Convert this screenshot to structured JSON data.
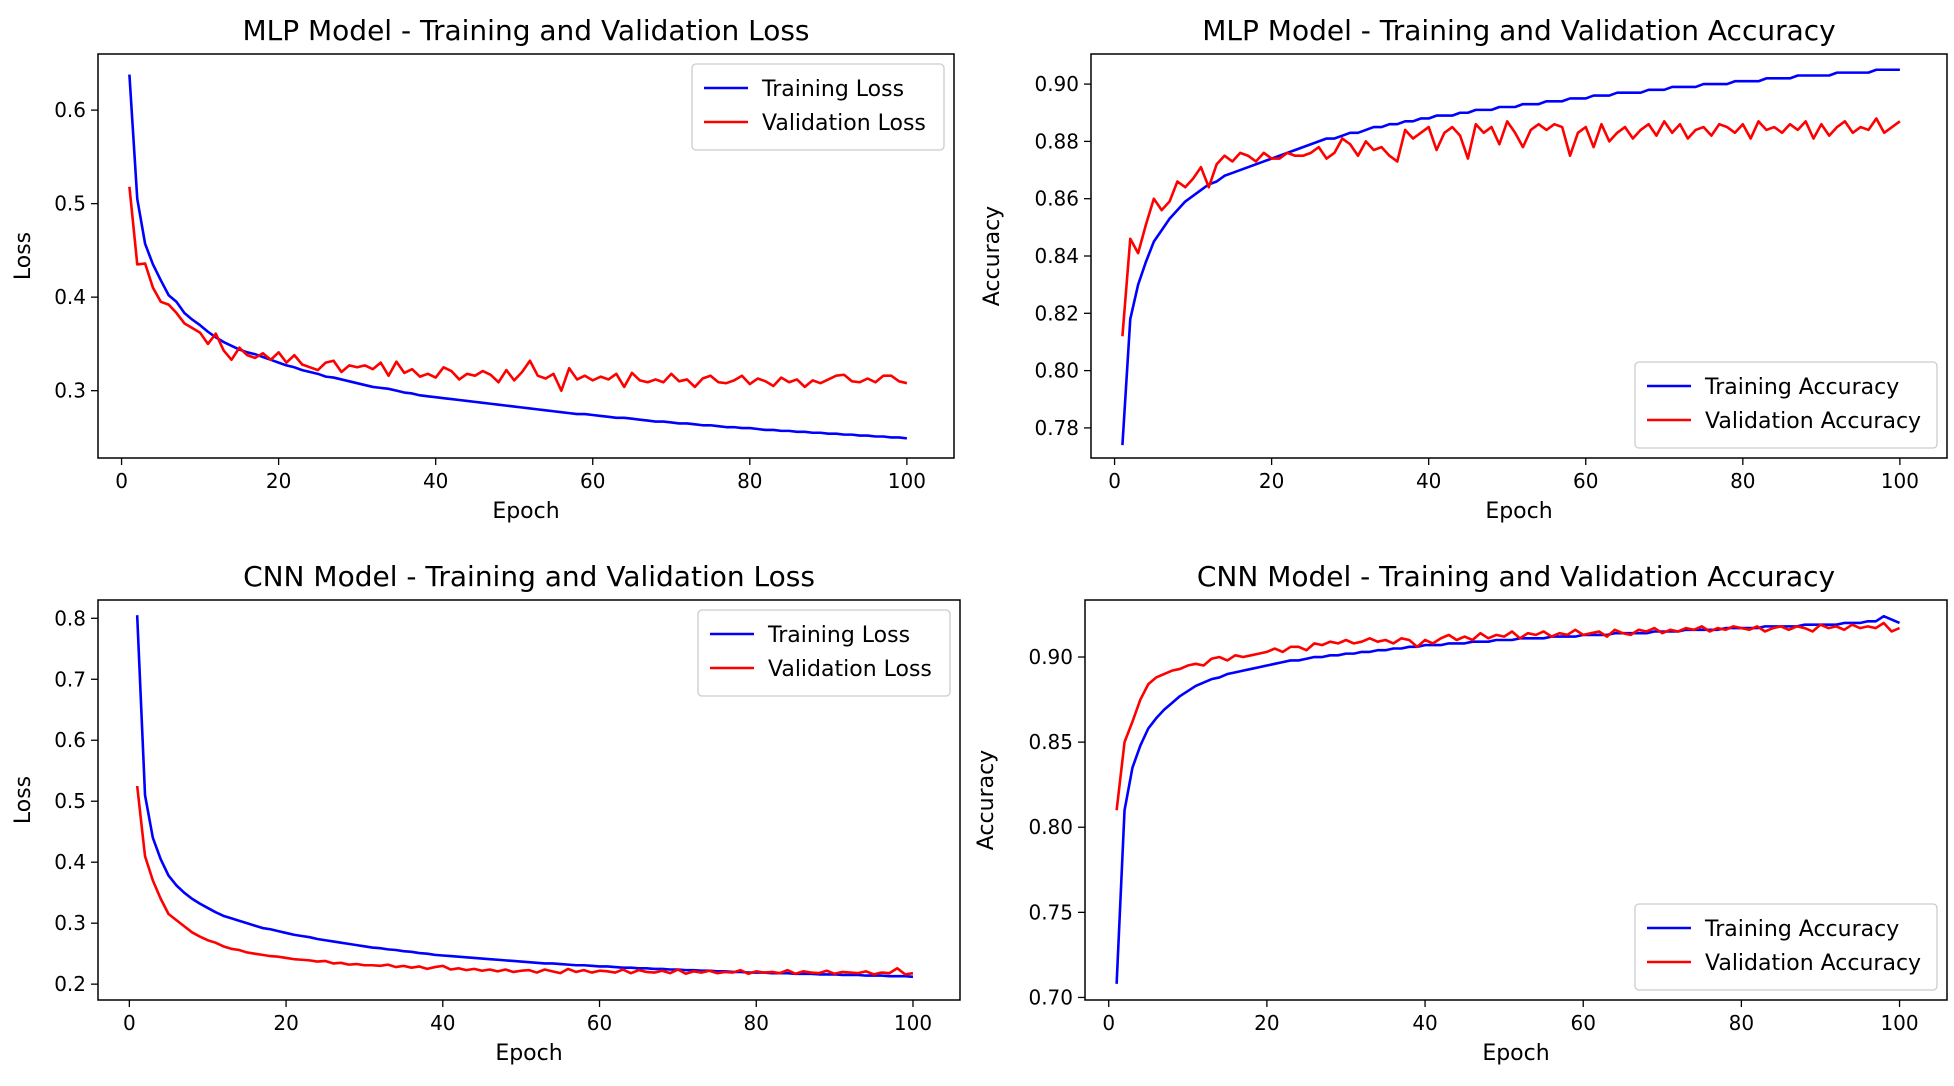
{
  "chart_data": [
    {
      "type": "line",
      "title": "MLP Model - Training and Validation Loss",
      "xlabel": "Epoch",
      "ylabel": "Loss",
      "xlim": [
        -3,
        106
      ],
      "ylim": [
        0.228,
        0.66
      ],
      "xticks": [
        0,
        20,
        40,
        60,
        80,
        100
      ],
      "xtick_labels": [
        "0",
        "20",
        "40",
        "60",
        "80",
        "100"
      ],
      "yticks": [
        0.3,
        0.4,
        0.5,
        0.6
      ],
      "ytick_labels": [
        "0.3",
        "0.4",
        "0.5",
        "0.6"
      ],
      "legend_position": "upper right",
      "grid": false,
      "x_start": 1,
      "series": [
        {
          "name": "Training Loss",
          "color": "#0000ff",
          "values": [
            0.638,
            0.505,
            0.457,
            0.435,
            0.418,
            0.402,
            0.395,
            0.383,
            0.376,
            0.37,
            0.363,
            0.357,
            0.352,
            0.348,
            0.344,
            0.341,
            0.339,
            0.336,
            0.333,
            0.33,
            0.327,
            0.325,
            0.322,
            0.32,
            0.318,
            0.315,
            0.314,
            0.312,
            0.31,
            0.308,
            0.306,
            0.304,
            0.303,
            0.302,
            0.3,
            0.298,
            0.297,
            0.295,
            0.294,
            0.293,
            0.292,
            0.291,
            0.29,
            0.289,
            0.288,
            0.287,
            0.286,
            0.285,
            0.284,
            0.283,
            0.282,
            0.281,
            0.28,
            0.279,
            0.278,
            0.277,
            0.276,
            0.275,
            0.275,
            0.274,
            0.273,
            0.272,
            0.271,
            0.271,
            0.27,
            0.269,
            0.268,
            0.267,
            0.267,
            0.266,
            0.265,
            0.265,
            0.264,
            0.263,
            0.263,
            0.262,
            0.261,
            0.261,
            0.26,
            0.26,
            0.259,
            0.258,
            0.258,
            0.257,
            0.257,
            0.256,
            0.256,
            0.255,
            0.255,
            0.254,
            0.254,
            0.253,
            0.253,
            0.252,
            0.252,
            0.251,
            0.251,
            0.25,
            0.25,
            0.249
          ]
        },
        {
          "name": "Validation Loss",
          "color": "#ff0000",
          "values": [
            0.518,
            0.435,
            0.436,
            0.41,
            0.395,
            0.392,
            0.383,
            0.372,
            0.367,
            0.362,
            0.35,
            0.361,
            0.343,
            0.333,
            0.346,
            0.338,
            0.335,
            0.34,
            0.333,
            0.341,
            0.33,
            0.338,
            0.328,
            0.325,
            0.322,
            0.33,
            0.332,
            0.32,
            0.327,
            0.325,
            0.327,
            0.323,
            0.33,
            0.316,
            0.331,
            0.319,
            0.323,
            0.315,
            0.318,
            0.314,
            0.325,
            0.321,
            0.312,
            0.318,
            0.316,
            0.321,
            0.317,
            0.309,
            0.322,
            0.311,
            0.32,
            0.332,
            0.316,
            0.313,
            0.318,
            0.3,
            0.324,
            0.312,
            0.316,
            0.311,
            0.315,
            0.312,
            0.318,
            0.304,
            0.319,
            0.311,
            0.309,
            0.312,
            0.309,
            0.318,
            0.31,
            0.312,
            0.304,
            0.313,
            0.316,
            0.309,
            0.308,
            0.311,
            0.316,
            0.307,
            0.313,
            0.31,
            0.305,
            0.314,
            0.309,
            0.312,
            0.304,
            0.311,
            0.308,
            0.312,
            0.316,
            0.317,
            0.31,
            0.309,
            0.313,
            0.309,
            0.316,
            0.316,
            0.31,
            0.308
          ]
        }
      ]
    },
    {
      "type": "line",
      "title": "MLP Model - Training and Validation Accuracy",
      "xlabel": "Epoch",
      "ylabel": "Accuracy",
      "xlim": [
        -3,
        106
      ],
      "ylim": [
        0.7695,
        0.9105
      ],
      "xticks": [
        0,
        20,
        40,
        60,
        80,
        100
      ],
      "xtick_labels": [
        "0",
        "20",
        "40",
        "60",
        "80",
        "100"
      ],
      "yticks": [
        0.78,
        0.8,
        0.82,
        0.84,
        0.86,
        0.88,
        0.9
      ],
      "ytick_labels": [
        "0.78",
        "0.80",
        "0.82",
        "0.84",
        "0.86",
        "0.88",
        "0.90"
      ],
      "legend_position": "lower right",
      "grid": false,
      "x_start": 1,
      "series": [
        {
          "name": "Training Accuracy",
          "color": "#0000ff",
          "values": [
            0.774,
            0.818,
            0.83,
            0.838,
            0.845,
            0.849,
            0.853,
            0.856,
            0.859,
            0.861,
            0.863,
            0.865,
            0.866,
            0.868,
            0.869,
            0.87,
            0.871,
            0.872,
            0.873,
            0.874,
            0.875,
            0.876,
            0.877,
            0.878,
            0.879,
            0.88,
            0.881,
            0.881,
            0.882,
            0.883,
            0.883,
            0.884,
            0.885,
            0.885,
            0.886,
            0.886,
            0.887,
            0.887,
            0.888,
            0.888,
            0.889,
            0.889,
            0.889,
            0.89,
            0.89,
            0.891,
            0.891,
            0.891,
            0.892,
            0.892,
            0.892,
            0.893,
            0.893,
            0.893,
            0.894,
            0.894,
            0.894,
            0.895,
            0.895,
            0.895,
            0.896,
            0.896,
            0.896,
            0.897,
            0.897,
            0.897,
            0.897,
            0.898,
            0.898,
            0.898,
            0.899,
            0.899,
            0.899,
            0.899,
            0.9,
            0.9,
            0.9,
            0.9,
            0.901,
            0.901,
            0.901,
            0.901,
            0.902,
            0.902,
            0.902,
            0.902,
            0.903,
            0.903,
            0.903,
            0.903,
            0.903,
            0.904,
            0.904,
            0.904,
            0.904,
            0.904,
            0.905,
            0.905,
            0.905,
            0.905
          ]
        },
        {
          "name": "Validation Accuracy",
          "color": "#ff0000",
          "values": [
            0.812,
            0.846,
            0.841,
            0.851,
            0.86,
            0.856,
            0.859,
            0.866,
            0.864,
            0.867,
            0.871,
            0.864,
            0.872,
            0.875,
            0.873,
            0.876,
            0.875,
            0.873,
            0.876,
            0.874,
            0.874,
            0.876,
            0.875,
            0.875,
            0.876,
            0.878,
            0.874,
            0.876,
            0.881,
            0.879,
            0.875,
            0.88,
            0.877,
            0.878,
            0.875,
            0.873,
            0.884,
            0.881,
            0.883,
            0.885,
            0.877,
            0.883,
            0.885,
            0.882,
            0.874,
            0.886,
            0.883,
            0.885,
            0.879,
            0.887,
            0.883,
            0.878,
            0.884,
            0.886,
            0.884,
            0.886,
            0.885,
            0.875,
            0.883,
            0.885,
            0.878,
            0.886,
            0.88,
            0.883,
            0.885,
            0.881,
            0.884,
            0.886,
            0.882,
            0.887,
            0.883,
            0.886,
            0.881,
            0.884,
            0.885,
            0.882,
            0.886,
            0.885,
            0.883,
            0.886,
            0.881,
            0.887,
            0.884,
            0.885,
            0.883,
            0.886,
            0.884,
            0.887,
            0.881,
            0.886,
            0.882,
            0.885,
            0.887,
            0.883,
            0.885,
            0.884,
            0.888,
            0.883,
            0.885,
            0.887
          ]
        }
      ]
    },
    {
      "type": "line",
      "title": "CNN Model - Training and Validation Loss",
      "xlabel": "Epoch",
      "ylabel": "Loss",
      "xlim": [
        -4,
        106
      ],
      "ylim": [
        0.174,
        0.83
      ],
      "xticks": [
        0,
        20,
        40,
        60,
        80,
        100
      ],
      "xtick_labels": [
        "0",
        "20",
        "40",
        "60",
        "80",
        "100"
      ],
      "yticks": [
        0.2,
        0.3,
        0.4,
        0.5,
        0.6,
        0.7,
        0.8
      ],
      "ytick_labels": [
        "0.2",
        "0.3",
        "0.4",
        "0.5",
        "0.6",
        "0.7",
        "0.8"
      ],
      "legend_position": "upper right",
      "grid": false,
      "x_start": 1,
      "series": [
        {
          "name": "Training Loss",
          "color": "#0000ff",
          "values": [
            0.805,
            0.51,
            0.44,
            0.405,
            0.378,
            0.362,
            0.35,
            0.34,
            0.332,
            0.325,
            0.318,
            0.312,
            0.308,
            0.304,
            0.3,
            0.296,
            0.292,
            0.29,
            0.287,
            0.284,
            0.281,
            0.279,
            0.277,
            0.274,
            0.272,
            0.27,
            0.268,
            0.266,
            0.264,
            0.262,
            0.26,
            0.259,
            0.257,
            0.256,
            0.254,
            0.253,
            0.251,
            0.25,
            0.248,
            0.247,
            0.246,
            0.245,
            0.244,
            0.243,
            0.242,
            0.241,
            0.24,
            0.239,
            0.238,
            0.237,
            0.236,
            0.235,
            0.234,
            0.234,
            0.233,
            0.232,
            0.231,
            0.231,
            0.23,
            0.229,
            0.229,
            0.228,
            0.227,
            0.227,
            0.226,
            0.226,
            0.225,
            0.225,
            0.224,
            0.224,
            0.223,
            0.223,
            0.222,
            0.222,
            0.221,
            0.221,
            0.22,
            0.22,
            0.219,
            0.219,
            0.219,
            0.218,
            0.218,
            0.218,
            0.217,
            0.217,
            0.217,
            0.216,
            0.216,
            0.216,
            0.215,
            0.215,
            0.215,
            0.214,
            0.214,
            0.214,
            0.213,
            0.213,
            0.213,
            0.212
          ]
        },
        {
          "name": "Validation Loss",
          "color": "#ff0000",
          "values": [
            0.525,
            0.41,
            0.37,
            0.34,
            0.315,
            0.305,
            0.295,
            0.285,
            0.278,
            0.272,
            0.268,
            0.262,
            0.258,
            0.256,
            0.252,
            0.25,
            0.248,
            0.246,
            0.245,
            0.243,
            0.241,
            0.24,
            0.239,
            0.237,
            0.238,
            0.234,
            0.235,
            0.232,
            0.233,
            0.231,
            0.231,
            0.23,
            0.232,
            0.228,
            0.23,
            0.227,
            0.229,
            0.225,
            0.228,
            0.23,
            0.224,
            0.226,
            0.223,
            0.225,
            0.222,
            0.224,
            0.221,
            0.224,
            0.22,
            0.222,
            0.223,
            0.219,
            0.224,
            0.221,
            0.218,
            0.225,
            0.22,
            0.223,
            0.219,
            0.222,
            0.221,
            0.219,
            0.224,
            0.218,
            0.223,
            0.22,
            0.219,
            0.222,
            0.218,
            0.224,
            0.217,
            0.221,
            0.219,
            0.222,
            0.218,
            0.22,
            0.219,
            0.223,
            0.217,
            0.221,
            0.219,
            0.22,
            0.218,
            0.223,
            0.217,
            0.221,
            0.219,
            0.218,
            0.222,
            0.217,
            0.22,
            0.219,
            0.218,
            0.221,
            0.216,
            0.219,
            0.218,
            0.226,
            0.216,
            0.218
          ]
        }
      ]
    },
    {
      "type": "line",
      "title": "CNN Model - Training and Validation Accuracy",
      "xlabel": "Epoch",
      "ylabel": "Accuracy",
      "xlim": [
        -3,
        106
      ],
      "ylim": [
        0.6985,
        0.9335
      ],
      "xticks": [
        0,
        20,
        40,
        60,
        80,
        100
      ],
      "xtick_labels": [
        "0",
        "20",
        "40",
        "60",
        "80",
        "100"
      ],
      "yticks": [
        0.7,
        0.75,
        0.8,
        0.85,
        0.9
      ],
      "ytick_labels": [
        "0.70",
        "0.75",
        "0.80",
        "0.85",
        "0.90"
      ],
      "legend_position": "lower right",
      "grid": false,
      "x_start": 1,
      "series": [
        {
          "name": "Training Accuracy",
          "color": "#0000ff",
          "values": [
            0.708,
            0.81,
            0.835,
            0.848,
            0.858,
            0.864,
            0.869,
            0.873,
            0.877,
            0.88,
            0.883,
            0.885,
            0.887,
            0.888,
            0.89,
            0.891,
            0.892,
            0.893,
            0.894,
            0.895,
            0.896,
            0.897,
            0.898,
            0.898,
            0.899,
            0.9,
            0.9,
            0.901,
            0.901,
            0.902,
            0.902,
            0.903,
            0.903,
            0.904,
            0.904,
            0.905,
            0.905,
            0.906,
            0.906,
            0.907,
            0.907,
            0.907,
            0.908,
            0.908,
            0.908,
            0.909,
            0.909,
            0.909,
            0.91,
            0.91,
            0.91,
            0.911,
            0.911,
            0.911,
            0.911,
            0.912,
            0.912,
            0.912,
            0.912,
            0.913,
            0.913,
            0.913,
            0.913,
            0.914,
            0.914,
            0.914,
            0.914,
            0.914,
            0.915,
            0.915,
            0.915,
            0.915,
            0.916,
            0.916,
            0.916,
            0.916,
            0.916,
            0.917,
            0.917,
            0.917,
            0.917,
            0.917,
            0.918,
            0.918,
            0.918,
            0.918,
            0.918,
            0.919,
            0.919,
            0.919,
            0.919,
            0.919,
            0.92,
            0.92,
            0.92,
            0.921,
            0.921,
            0.924,
            0.922,
            0.92
          ]
        },
        {
          "name": "Validation Accuracy",
          "color": "#ff0000",
          "values": [
            0.81,
            0.85,
            0.862,
            0.875,
            0.884,
            0.888,
            0.89,
            0.892,
            0.893,
            0.895,
            0.896,
            0.895,
            0.899,
            0.9,
            0.898,
            0.901,
            0.9,
            0.901,
            0.902,
            0.903,
            0.905,
            0.903,
            0.906,
            0.906,
            0.904,
            0.908,
            0.907,
            0.909,
            0.908,
            0.91,
            0.908,
            0.909,
            0.911,
            0.909,
            0.91,
            0.908,
            0.911,
            0.91,
            0.906,
            0.91,
            0.908,
            0.911,
            0.913,
            0.91,
            0.912,
            0.91,
            0.914,
            0.911,
            0.913,
            0.912,
            0.915,
            0.911,
            0.914,
            0.913,
            0.915,
            0.912,
            0.914,
            0.913,
            0.916,
            0.913,
            0.914,
            0.915,
            0.912,
            0.916,
            0.914,
            0.913,
            0.916,
            0.915,
            0.917,
            0.914,
            0.916,
            0.915,
            0.917,
            0.916,
            0.918,
            0.915,
            0.917,
            0.916,
            0.918,
            0.917,
            0.916,
            0.918,
            0.915,
            0.917,
            0.918,
            0.916,
            0.918,
            0.917,
            0.915,
            0.919,
            0.917,
            0.918,
            0.916,
            0.919,
            0.917,
            0.918,
            0.917,
            0.92,
            0.915,
            0.917
          ]
        }
      ]
    }
  ]
}
